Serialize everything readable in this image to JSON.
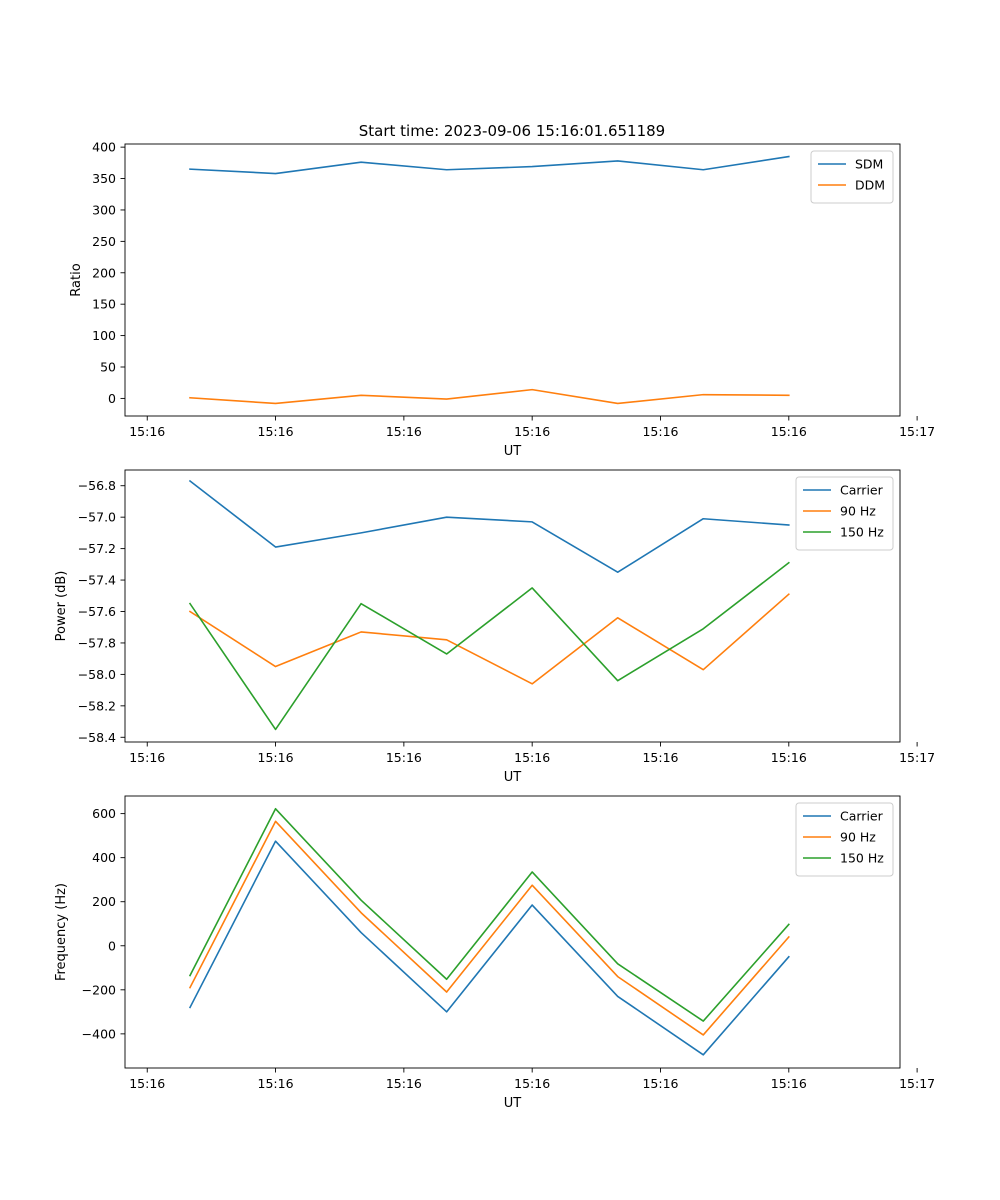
{
  "figure": {
    "title": "Start time: 2023-09-06 15:16:01.651189"
  },
  "colors": {
    "blue": "#1f77b4",
    "orange": "#ff7f0e",
    "green": "#2ca02c"
  },
  "chart_data": [
    {
      "type": "line",
      "id": "ratio",
      "title": "Start time: 2023-09-06 15:16:01.651189",
      "xlabel": "UT",
      "ylabel": "Ratio",
      "x": [
        1,
        2,
        3,
        4,
        5,
        6,
        7,
        8
      ],
      "xlim": [
        0.24,
        9.3
      ],
      "xticks": [
        0.5,
        2,
        3.5,
        5,
        6.5,
        8,
        9.5
      ],
      "xtick_labels": [
        "15:16",
        "15:16",
        "15:16",
        "15:16",
        "15:16",
        "15:16",
        "15:17"
      ],
      "ylim": [
        -28,
        405
      ],
      "yticks": [
        0,
        50,
        100,
        150,
        200,
        250,
        300,
        350,
        400
      ],
      "ytick_labels": [
        "0",
        "50",
        "100",
        "150",
        "200",
        "250",
        "300",
        "350",
        "400"
      ],
      "legend": "top-right",
      "series": [
        {
          "name": "SDM",
          "color": "#1f77b4",
          "values": [
            365,
            358,
            376,
            364,
            369,
            378,
            364,
            385
          ]
        },
        {
          "name": "DDM",
          "color": "#ff7f0e",
          "values": [
            1,
            -8,
            5,
            -1,
            14,
            -8,
            6,
            5
          ]
        }
      ]
    },
    {
      "type": "line",
      "id": "power",
      "title": "",
      "xlabel": "UT",
      "ylabel": "Power (dB)",
      "x": [
        1,
        2,
        3,
        4,
        5,
        6,
        7,
        8
      ],
      "xlim": [
        0.24,
        9.3
      ],
      "xticks": [
        0.5,
        2,
        3.5,
        5,
        6.5,
        8,
        9.5
      ],
      "xtick_labels": [
        "15:16",
        "15:16",
        "15:16",
        "15:16",
        "15:16",
        "15:16",
        "15:17"
      ],
      "ylim": [
        -58.43,
        -56.7
      ],
      "yticks": [
        -58.4,
        -58.2,
        -58.0,
        -57.8,
        -57.6,
        -57.4,
        -57.2,
        -57.0,
        -56.8
      ],
      "ytick_labels": [
        "−58.4",
        "−58.2",
        "−58.0",
        "−57.8",
        "−57.6",
        "−57.4",
        "−57.2",
        "−57.0",
        "−56.8"
      ],
      "legend": "top-right",
      "series": [
        {
          "name": "Carrier",
          "color": "#1f77b4",
          "values": [
            -56.77,
            -57.19,
            -57.1,
            -57.0,
            -57.03,
            -57.35,
            -57.01,
            -57.05
          ]
        },
        {
          "name": "90 Hz",
          "color": "#ff7f0e",
          "values": [
            -57.6,
            -57.95,
            -57.73,
            -57.78,
            -58.06,
            -57.64,
            -57.97,
            -57.49
          ]
        },
        {
          "name": "150 Hz",
          "color": "#2ca02c",
          "values": [
            -57.55,
            -58.35,
            -57.55,
            -57.87,
            -57.45,
            -58.04,
            -57.71,
            -57.29
          ]
        }
      ]
    },
    {
      "type": "line",
      "id": "frequency",
      "title": "",
      "xlabel": "UT",
      "ylabel": "Frequency (Hz)",
      "x": [
        1,
        2,
        3,
        4,
        5,
        6,
        7,
        8
      ],
      "xlim": [
        0.24,
        9.3
      ],
      "xticks": [
        0.5,
        2,
        3.5,
        5,
        6.5,
        8,
        9.5
      ],
      "xtick_labels": [
        "15:16",
        "15:16",
        "15:16",
        "15:16",
        "15:16",
        "15:16",
        "15:17"
      ],
      "ylim": [
        -555,
        680
      ],
      "yticks": [
        -400,
        -200,
        0,
        200,
        400,
        600
      ],
      "ytick_labels": [
        "−400",
        "−200",
        "0",
        "200",
        "400",
        "600"
      ],
      "legend": "top-right",
      "series": [
        {
          "name": "Carrier",
          "color": "#1f77b4",
          "values": [
            -280,
            475,
            60,
            -300,
            185,
            -230,
            -495,
            -50
          ]
        },
        {
          "name": "90 Hz",
          "color": "#ff7f0e",
          "values": [
            -190,
            565,
            150,
            -210,
            275,
            -140,
            -405,
            40
          ]
        },
        {
          "name": "150 Hz",
          "color": "#2ca02c",
          "values": [
            -135,
            622,
            207,
            -152,
            335,
            -82,
            -342,
            97
          ]
        }
      ]
    }
  ]
}
